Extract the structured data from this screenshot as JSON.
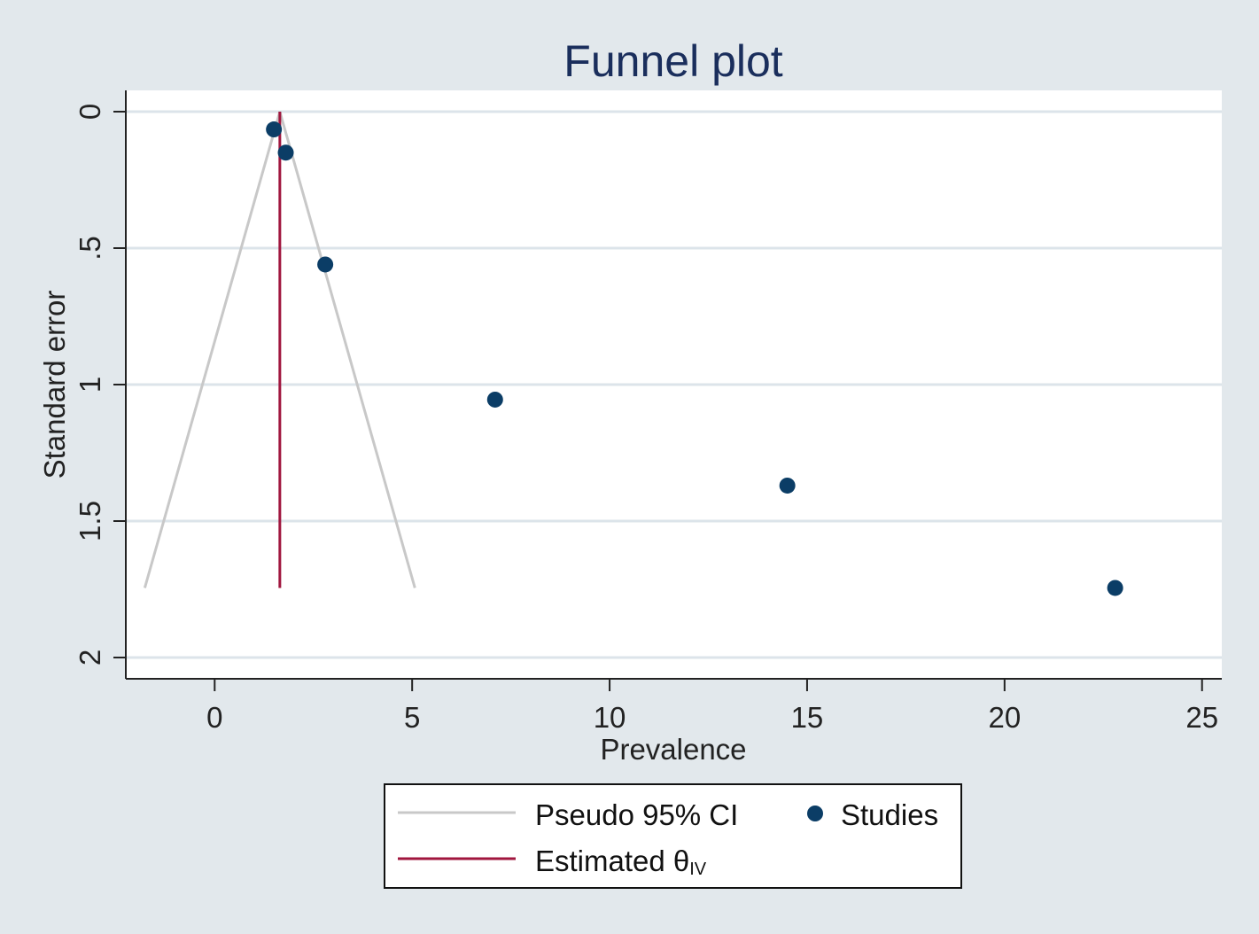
{
  "chart_data": {
    "type": "scatter",
    "title": "Funnel plot",
    "xlabel": "Prevalence",
    "ylabel": "Standard error",
    "xlim": [
      -2.25,
      25.5
    ],
    "ylim": [
      0,
      2.07
    ],
    "y_inverted": true,
    "grid": "horizontal",
    "x_ticks": [
      {
        "value": 0,
        "label": "0"
      },
      {
        "value": 5,
        "label": "5"
      },
      {
        "value": 10,
        "label": "10"
      },
      {
        "value": 15,
        "label": "15"
      },
      {
        "value": 20,
        "label": "20"
      },
      {
        "value": 25,
        "label": "25"
      }
    ],
    "y_ticks": [
      {
        "value": 0,
        "label": "0"
      },
      {
        "value": 0.5,
        "label": ".5"
      },
      {
        "value": 1,
        "label": "1"
      },
      {
        "value": 1.5,
        "label": "1.5"
      },
      {
        "value": 2,
        "label": "2"
      }
    ],
    "studies": {
      "name": "Studies",
      "color": "#0b3d66",
      "points": [
        {
          "x": 1.5,
          "y": 0.065
        },
        {
          "x": 1.8,
          "y": 0.15
        },
        {
          "x": 2.8,
          "y": 0.56
        },
        {
          "x": 7.1,
          "y": 1.055
        },
        {
          "x": 14.5,
          "y": 1.37
        },
        {
          "x": 22.8,
          "y": 1.745
        }
      ]
    },
    "pseudo_ci": {
      "name": "Pseudo 95% CI",
      "color": "#c8c8c8",
      "apex": {
        "x": 1.65,
        "y": 0
      },
      "bottom_se": 1.745,
      "left_x": -1.77,
      "right_x": 5.07
    },
    "estimate": {
      "name_main": "Estimated θ",
      "name_sub": "IV",
      "color": "#a0163e",
      "x": 1.65,
      "y_range": [
        0,
        1.745
      ]
    },
    "legend_position": "bottom",
    "colors": {
      "outer_background": "#e2e8ec",
      "plot_background": "#ffffff",
      "gridline": "#dce4ea",
      "axis": "#222222"
    }
  }
}
